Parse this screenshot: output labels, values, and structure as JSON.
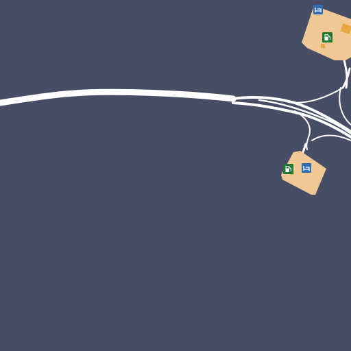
{
  "map": {
    "background_color": "#484d66",
    "road_color": "#ffffff",
    "service_area_color": "#f0c896",
    "parking_color": "#e8a640",
    "fuel_icon_color": "#1e7a32",
    "lodging_icon_color": "#2f6cb0",
    "service_areas": [
      {
        "name": "service-area-north",
        "icons": [
          "fuel-icon",
          "lodging-icon"
        ]
      },
      {
        "name": "service-area-south",
        "icons": [
          "fuel-icon",
          "lodging-icon"
        ]
      }
    ]
  }
}
